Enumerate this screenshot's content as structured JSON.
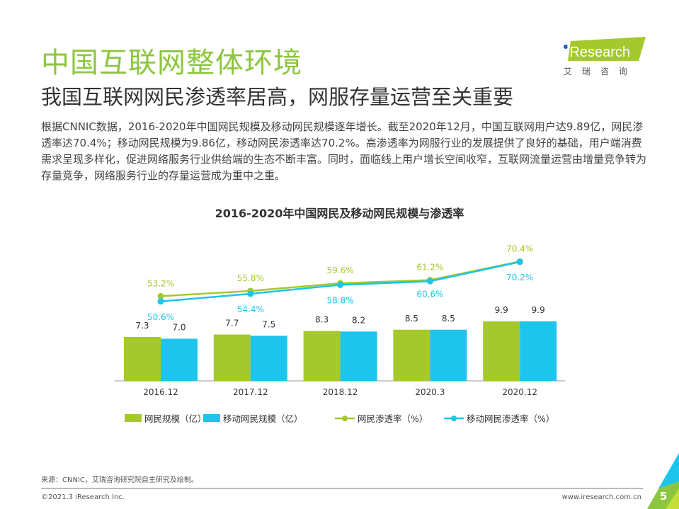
{
  "header": {
    "title": "中国互联网整体环境",
    "subtitle": "我国互联网网民渗透率居高，网服存量运营至关重要",
    "logo_text": "iResearch",
    "logo_sub": "艾瑞咨询"
  },
  "body_text": "根据CNNIC数据，2016-2020年中国网民规模及移动网民规模逐年增长。截至2020年12月，中国互联网用户达9.89亿，网民渗透率达70.4%；移动网民规模为9.86亿，移动网民渗透率达70.2%。高渗透率为网服行业的发展提供了良好的基础，用户端消费需求呈现多样化，促进网络服务行业供给端的生态不断丰富。同时，面临线上用户增长空间收窄，互联网流量运营由增量竞争转为存量竞争，网络服务行业的存量运营成为重中之重。",
  "chart_data": {
    "type": "bar+line",
    "title": "2016-2020年中国网民及移动网民规模与渗透率",
    "categories": [
      "2016.12",
      "2017.12",
      "2018.12",
      "2020.3",
      "2020.12"
    ],
    "series": [
      {
        "name": "网民规模（亿）",
        "type": "bar",
        "color": "#a5c92d",
        "values": [
          7.3,
          7.7,
          8.3,
          8.5,
          9.9
        ]
      },
      {
        "name": "移动网民规模（亿）",
        "type": "bar",
        "color": "#1dc4ec",
        "values": [
          7.0,
          7.5,
          8.2,
          8.5,
          9.9
        ]
      },
      {
        "name": "网民渗透率（%）",
        "type": "line",
        "color": "#a5c92d",
        "values": [
          53.2,
          55.8,
          59.6,
          61.2,
          70.4
        ]
      },
      {
        "name": "移动网民渗透率（%）",
        "type": "line",
        "color": "#1dc4ec",
        "values": [
          50.6,
          54.4,
          58.8,
          60.6,
          70.2
        ]
      }
    ],
    "legend": "bottom",
    "grid": false
  },
  "footer": {
    "source": "来源：CNNIC，艾瑞咨询研究院自主研究及绘制。",
    "copyright": "©2021.3 iResearch Inc.",
    "url": "www.iresearch.com.cn",
    "page": "5"
  }
}
